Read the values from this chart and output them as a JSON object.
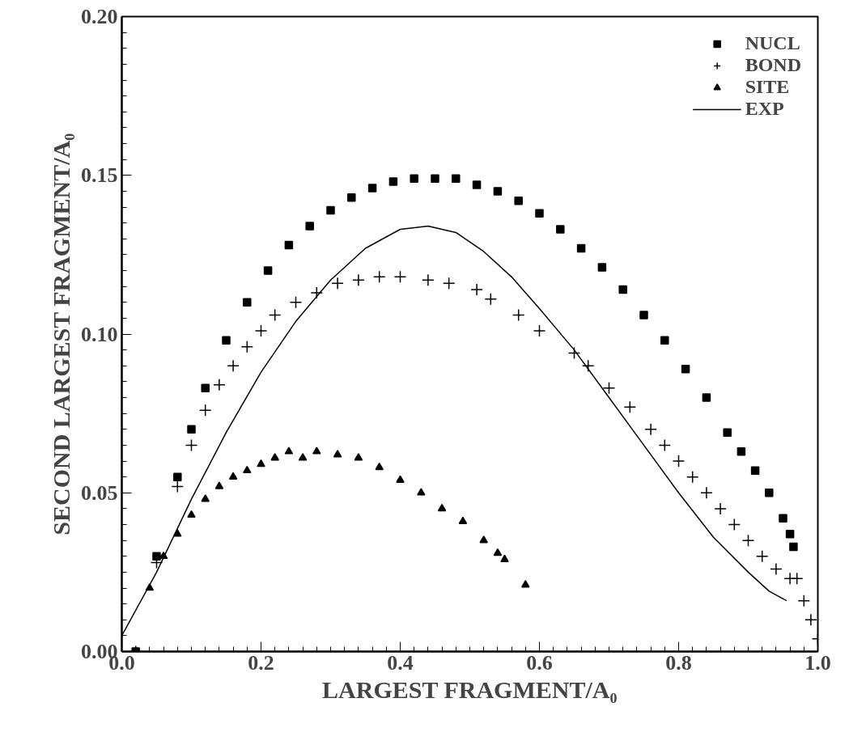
{
  "chart_data": {
    "type": "scatter",
    "xlabel": "LARGEST FRAGMENT/A₀",
    "ylabel": "SECOND LARGEST FRAGMENT/A₀",
    "xlim": [
      0,
      1
    ],
    "ylim": [
      0,
      0.2
    ],
    "xticks": [
      {
        "value": 0,
        "label": "0.0"
      },
      {
        "value": 0.2,
        "label": "0.2"
      },
      {
        "value": 0.4,
        "label": "0.4"
      },
      {
        "value": 0.6,
        "label": "0.6"
      },
      {
        "value": 0.8,
        "label": "0.8"
      },
      {
        "value": 1,
        "label": "1.0"
      }
    ],
    "yticks": [
      {
        "value": 0,
        "label": "0.00"
      },
      {
        "value": 0.05,
        "label": "0.05"
      },
      {
        "value": 0.1,
        "label": "0.10"
      },
      {
        "value": 0.15,
        "label": "0.15"
      },
      {
        "value": 0.2,
        "label": "0.20"
      }
    ],
    "grid": false,
    "legend": "top right",
    "series": [
      {
        "name": "NUCL",
        "marker": "square",
        "color": "#000000",
        "x": [
          0.02,
          0.05,
          0.08,
          0.1,
          0.12,
          0.15,
          0.18,
          0.21,
          0.24,
          0.27,
          0.3,
          0.33,
          0.36,
          0.39,
          0.42,
          0.45,
          0.48,
          0.51,
          0.54,
          0.57,
          0.6,
          0.63,
          0.66,
          0.69,
          0.72,
          0.75,
          0.78,
          0.81,
          0.84,
          0.87,
          0.89,
          0.91,
          0.93,
          0.95,
          0.96,
          0.965
        ],
        "values": [
          0,
          0.03,
          0.055,
          0.07,
          0.083,
          0.098,
          0.11,
          0.12,
          0.128,
          0.134,
          0.139,
          0.143,
          0.146,
          0.148,
          0.149,
          0.149,
          0.149,
          0.147,
          0.145,
          0.142,
          0.138,
          0.133,
          0.127,
          0.121,
          0.114,
          0.106,
          0.098,
          0.089,
          0.08,
          0.069,
          0.063,
          0.057,
          0.05,
          0.042,
          0.037,
          0.033
        ]
      },
      {
        "name": "BOND",
        "marker": "cross",
        "color": "#000000",
        "x": [
          0.02,
          0.05,
          0.08,
          0.1,
          0.12,
          0.14,
          0.16,
          0.18,
          0.2,
          0.22,
          0.25,
          0.28,
          0.31,
          0.34,
          0.37,
          0.4,
          0.44,
          0.47,
          0.51,
          0.53,
          0.57,
          0.6,
          0.65,
          0.67,
          0.7,
          0.73,
          0.76,
          0.78,
          0.8,
          0.82,
          0.84,
          0.86,
          0.88,
          0.9,
          0.92,
          0.94,
          0.96,
          0.97,
          0.98,
          0.99,
          1.0
        ],
        "values": [
          0,
          0.028,
          0.052,
          0.065,
          0.076,
          0.084,
          0.09,
          0.096,
          0.101,
          0.106,
          0.11,
          0.113,
          0.116,
          0.117,
          0.118,
          0.118,
          0.117,
          0.116,
          0.114,
          0.111,
          0.106,
          0.101,
          0.094,
          0.09,
          0.083,
          0.077,
          0.07,
          0.065,
          0.06,
          0.055,
          0.05,
          0.045,
          0.04,
          0.035,
          0.03,
          0.026,
          0.023,
          0.023,
          0.016,
          0.01,
          0.004
        ]
      },
      {
        "name": "SITE",
        "marker": "triangle",
        "color": "#000000",
        "x": [
          0.04,
          0.06,
          0.08,
          0.1,
          0.12,
          0.14,
          0.16,
          0.18,
          0.2,
          0.22,
          0.24,
          0.26,
          0.28,
          0.31,
          0.34,
          0.37,
          0.4,
          0.43,
          0.46,
          0.49,
          0.52,
          0.54,
          0.55,
          0.58
        ],
        "values": [
          0.02,
          0.03,
          0.037,
          0.043,
          0.048,
          0.052,
          0.055,
          0.057,
          0.059,
          0.061,
          0.063,
          0.061,
          0.063,
          0.062,
          0.061,
          0.058,
          0.054,
          0.05,
          0.045,
          0.041,
          0.035,
          0.031,
          0.029,
          0.021
        ]
      },
      {
        "name": "EXP",
        "type": "line",
        "marker": "none",
        "line_style": "solid",
        "color": "#000000",
        "x": [
          0,
          0.05,
          0.1,
          0.15,
          0.2,
          0.25,
          0.3,
          0.35,
          0.4,
          0.44,
          0.48,
          0.52,
          0.56,
          0.6,
          0.65,
          0.7,
          0.75,
          0.8,
          0.85,
          0.9,
          0.93,
          0.955
        ],
        "values": [
          0.005,
          0.025,
          0.048,
          0.069,
          0.088,
          0.104,
          0.117,
          0.127,
          0.133,
          0.134,
          0.132,
          0.126,
          0.118,
          0.108,
          0.095,
          0.08,
          0.065,
          0.05,
          0.036,
          0.025,
          0.019,
          0.016
        ]
      }
    ]
  }
}
